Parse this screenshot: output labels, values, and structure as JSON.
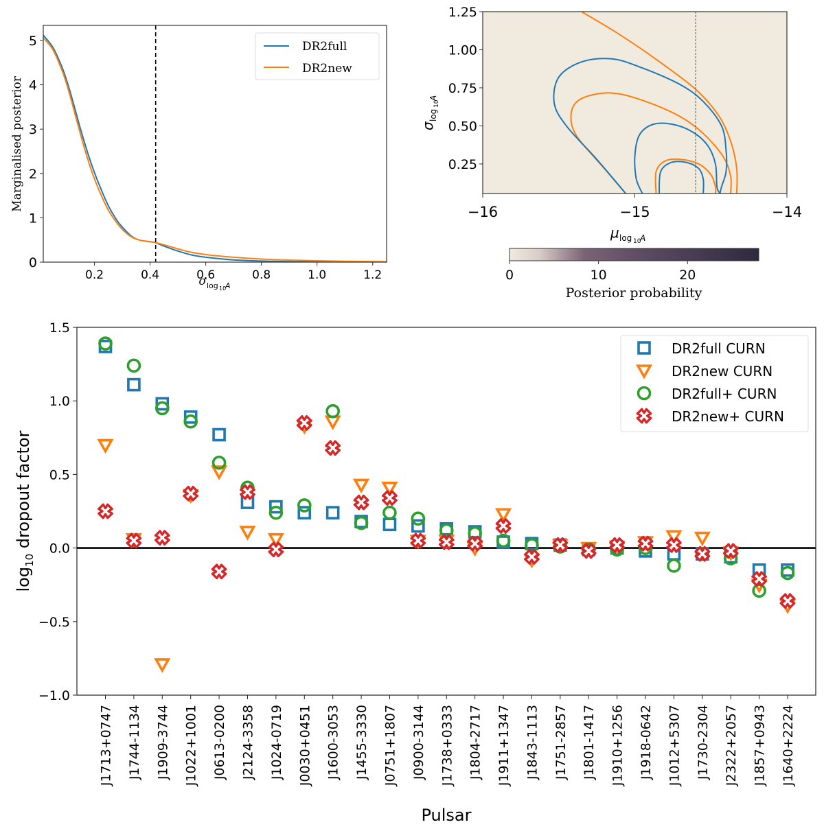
{
  "chart_data": [
    {
      "type": "line",
      "id": "marginal",
      "title": "",
      "xlabel": "σ_log10A",
      "xlabel_main": "σ",
      "xlabel_sub": "log",
      "xlabel_sub2": "10",
      "xlabel_sub3": "A",
      "ylabel": "Marginalised posterior",
      "xlim": [
        0.016,
        1.25
      ],
      "ylim": [
        0,
        5.34
      ],
      "xticks": [
        0.2,
        0.4,
        0.6,
        0.8,
        1.0,
        1.2
      ],
      "xtick_labels": [
        "0.2",
        "0.4",
        "0.6",
        "0.8",
        "1.0",
        "1.2"
      ],
      "yticks": [
        0,
        1,
        2,
        3,
        4,
        5
      ],
      "ytick_labels": [
        "0",
        "1",
        "2",
        "3",
        "4",
        "5"
      ],
      "vline": 0.42,
      "legend_position": "top-right",
      "x": [
        0.016,
        0.05,
        0.08,
        0.1,
        0.12,
        0.15,
        0.18,
        0.2,
        0.22,
        0.25,
        0.28,
        0.3,
        0.33,
        0.36,
        0.4,
        0.42,
        0.45,
        0.5,
        0.55,
        0.6,
        0.7,
        0.8,
        0.9,
        1.0,
        1.1,
        1.25
      ],
      "series": [
        {
          "name": "DR2full",
          "color": "#1f77b4",
          "values": [
            5.12,
            4.85,
            4.45,
            4.1,
            3.68,
            3.0,
            2.38,
            2.02,
            1.7,
            1.27,
            0.95,
            0.79,
            0.6,
            0.5,
            0.46,
            0.44,
            0.36,
            0.25,
            0.16,
            0.11,
            0.05,
            0.025,
            0.012,
            0.006,
            0.003,
            0.001
          ]
        },
        {
          "name": "DR2new",
          "color": "#ff7f0e",
          "values": [
            5.06,
            4.8,
            4.38,
            4.02,
            3.58,
            2.88,
            2.24,
            1.88,
            1.57,
            1.17,
            0.89,
            0.74,
            0.58,
            0.5,
            0.46,
            0.44,
            0.39,
            0.3,
            0.22,
            0.17,
            0.11,
            0.07,
            0.045,
            0.03,
            0.02,
            0.01
          ]
        }
      ]
    },
    {
      "type": "heatmap",
      "id": "joint",
      "xlabel": "μ_log10A",
      "xlabel_main": "μ",
      "ylabel": "σ_log10A",
      "ylabel_main": "σ",
      "sub": "log",
      "sub2": "10",
      "sub3": "A",
      "xlim": [
        -16,
        -14
      ],
      "ylim": [
        0.056,
        1.25
      ],
      "xticks": [
        -16,
        -15,
        -14
      ],
      "xtick_labels": [
        "−16",
        "−15",
        "−14"
      ],
      "yticks": [
        0.25,
        0.5,
        0.75,
        1.0,
        1.25
      ],
      "ytick_labels": [
        "0.25",
        "0.50",
        "0.75",
        "1.00",
        "1.25"
      ],
      "vline": -14.6,
      "density_peak": {
        "mu": -14.66,
        "sigma": 0.056,
        "mu_width": 0.1,
        "sigma_width": 0.16
      },
      "colorbar": {
        "label": "Posterior probability",
        "min": 0,
        "max": 28,
        "ticks": [
          0,
          10,
          20
        ],
        "tick_labels": [
          "0",
          "10",
          "20"
        ],
        "low_color": "#f1ebdf",
        "high_color": "#2e2a3d"
      },
      "contours": [
        {
          "series": "DR2full",
          "level": "inner",
          "color": "#1f77b4",
          "points": [
            [
              -14.84,
              0.056
            ],
            [
              -14.83,
              0.2
            ],
            [
              -14.76,
              0.26
            ],
            [
              -14.66,
              0.26
            ],
            [
              -14.58,
              0.22
            ],
            [
              -14.55,
              0.15
            ],
            [
              -14.55,
              0.056
            ]
          ]
        },
        {
          "series": "DR2new",
          "level": "inner",
          "color": "#ff7f0e",
          "points": [
            [
              -14.86,
              0.056
            ],
            [
              -14.86,
              0.2
            ],
            [
              -14.8,
              0.27
            ],
            [
              -14.7,
              0.28
            ],
            [
              -14.58,
              0.25
            ],
            [
              -14.5,
              0.18
            ],
            [
              -14.47,
              0.1
            ],
            [
              -14.47,
              0.056
            ]
          ]
        },
        {
          "series": "DR2full",
          "level": "middle",
          "color": "#1f77b4",
          "points": [
            [
              -14.95,
              0.056
            ],
            [
              -14.99,
              0.15
            ],
            [
              -15.0,
              0.3
            ],
            [
              -14.97,
              0.44
            ],
            [
              -14.88,
              0.51
            ],
            [
              -14.75,
              0.51
            ],
            [
              -14.62,
              0.46
            ],
            [
              -14.52,
              0.37
            ],
            [
              -14.47,
              0.25
            ],
            [
              -14.46,
              0.1
            ],
            [
              -14.44,
              0.056
            ]
          ]
        },
        {
          "series": "DR2new",
          "level": "middle",
          "color": "#ff7f0e",
          "points": [
            [
              -15.06,
              0.056
            ],
            [
              -15.2,
              0.22
            ],
            [
              -15.38,
              0.43
            ],
            [
              -15.42,
              0.56
            ],
            [
              -15.38,
              0.66
            ],
            [
              -15.25,
              0.71
            ],
            [
              -15.1,
              0.71
            ],
            [
              -14.9,
              0.65
            ],
            [
              -14.7,
              0.56
            ],
            [
              -14.55,
              0.45
            ],
            [
              -14.42,
              0.3
            ],
            [
              -14.37,
              0.17
            ],
            [
              -14.37,
              0.056
            ]
          ]
        },
        {
          "series": "DR2full",
          "level": "outer",
          "color": "#1f77b4",
          "points": [
            [
              -15.06,
              0.056
            ],
            [
              -15.25,
              0.28
            ],
            [
              -15.45,
              0.5
            ],
            [
              -15.53,
              0.65
            ],
            [
              -15.5,
              0.82
            ],
            [
              -15.35,
              0.92
            ],
            [
              -15.15,
              0.94
            ],
            [
              -14.95,
              0.88
            ],
            [
              -14.7,
              0.77
            ],
            [
              -14.55,
              0.66
            ],
            [
              -14.43,
              0.5
            ],
            [
              -14.4,
              0.34
            ],
            [
              -14.4,
              0.2
            ],
            [
              -14.43,
              0.1
            ],
            [
              -14.44,
              0.056
            ]
          ]
        },
        {
          "series": "DR2new",
          "level": "outer",
          "color": "#ff7f0e",
          "points": [
            [
              -15.35,
              1.25
            ],
            [
              -15.1,
              1.1
            ],
            [
              -14.85,
              0.93
            ],
            [
              -14.6,
              0.74
            ],
            [
              -14.45,
              0.57
            ],
            [
              -14.37,
              0.4
            ],
            [
              -14.33,
              0.22
            ],
            [
              -14.33,
              0.056
            ]
          ]
        }
      ]
    },
    {
      "type": "scatter",
      "id": "dropout",
      "xlabel": "Pulsar",
      "ylabel": "log10 dropout factor",
      "ylabel_main": "log",
      "ylabel_sub": "10",
      "ylabel_rest": " dropout factor",
      "ylim": [
        -1.0,
        1.5
      ],
      "yticks": [
        -1.0,
        -0.5,
        0.0,
        0.5,
        1.0,
        1.5
      ],
      "ytick_labels": [
        "−1.0",
        "−0.5",
        "0.0",
        "0.5",
        "1.0",
        "1.5"
      ],
      "hline": 0.0,
      "legend_position": "top-right",
      "categories": [
        "J1713+0747",
        "J1744-1134",
        "J1909-3744",
        "J1022+1001",
        "J0613-0200",
        "J2124-3358",
        "J1024-0719",
        "J0030+0451",
        "J1600-3053",
        "J1455-3330",
        "J0751+1807",
        "J0900-3144",
        "J1738+0333",
        "J1804-2717",
        "J1911+1347",
        "J1843-1113",
        "J1751-2857",
        "J1801-1417",
        "J1910+1256",
        "J1918-0642",
        "J1012+5307",
        "J1730-2304",
        "J2322+2057",
        "J1857+0943",
        "J1640+2224"
      ],
      "series": [
        {
          "name": "DR2full CURN",
          "marker": "square",
          "color": "#1f77b4",
          "values": [
            1.37,
            1.11,
            0.98,
            0.89,
            0.77,
            0.31,
            0.28,
            0.24,
            0.24,
            0.18,
            0.16,
            0.15,
            0.13,
            0.11,
            0.04,
            0.03,
            0.02,
            -0.01,
            0.0,
            -0.02,
            -0.04,
            -0.04,
            -0.06,
            -0.15,
            -0.15
          ]
        },
        {
          "name": "DR2new CURN",
          "marker": "triangle_down",
          "color": "#ff7f0e",
          "values": [
            0.7,
            0.06,
            -0.79,
            0.36,
            0.52,
            0.11,
            0.06,
            0.83,
            0.86,
            0.43,
            0.41,
            0.05,
            0.05,
            0.0,
            0.23,
            -0.08,
            0.02,
            0.0,
            0.01,
            0.04,
            0.08,
            0.07,
            -0.03,
            -0.25,
            -0.39
          ]
        },
        {
          "name": "DR2full+ CURN",
          "marker": "circle",
          "color": "#2ca02c",
          "values": [
            1.39,
            1.24,
            0.95,
            0.86,
            0.58,
            0.41,
            0.24,
            0.29,
            0.93,
            0.17,
            0.24,
            0.2,
            0.12,
            0.1,
            0.05,
            0.02,
            0.01,
            -0.01,
            -0.01,
            0.0,
            -0.12,
            -0.04,
            -0.07,
            -0.29,
            -0.17
          ]
        },
        {
          "name": "DR2new+ CURN",
          "marker": "x_filled",
          "color": "#d62728",
          "values": [
            0.25,
            0.05,
            0.07,
            0.37,
            -0.16,
            0.38,
            -0.01,
            0.85,
            0.68,
            0.31,
            0.34,
            0.05,
            0.04,
            0.03,
            0.15,
            -0.06,
            0.02,
            -0.02,
            0.02,
            0.03,
            0.02,
            -0.04,
            -0.02,
            -0.21,
            -0.36
          ]
        }
      ]
    }
  ]
}
